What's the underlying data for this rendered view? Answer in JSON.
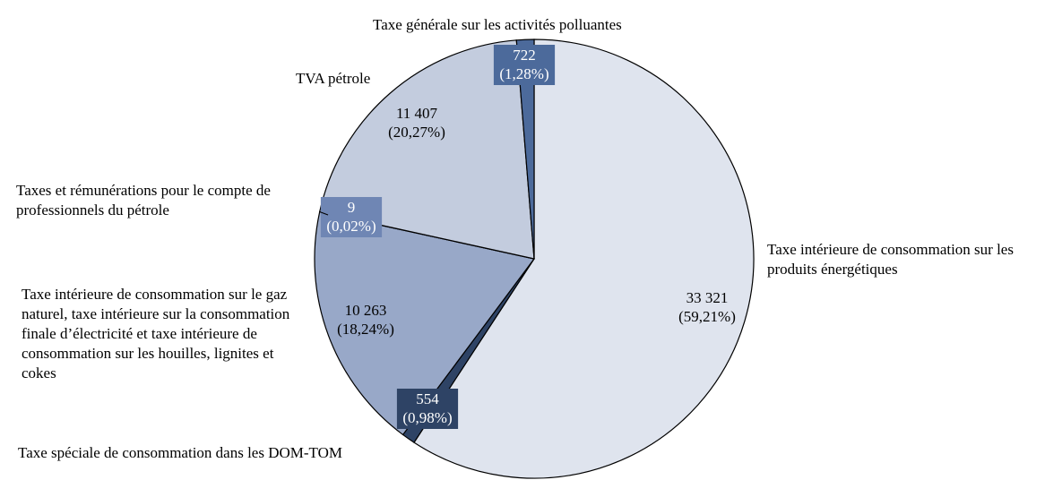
{
  "chart_data": {
    "type": "pie",
    "title": "",
    "slices": [
      {
        "label": "Taxe intérieure de consommation sur les produits énergétiques",
        "value": 33321,
        "value_label": "33 321",
        "pct_label": "(59,21%)",
        "color": "#dfe4ee"
      },
      {
        "label": "Taxe spéciale de consommation dans les DOM-TOM",
        "value": 554,
        "value_label": "554",
        "pct_label": "(0,98%)",
        "color": "#2e4365"
      },
      {
        "label": "Taxe intérieure de consommation sur le gaz naturel, taxe intérieure sur la consommation finale d’électricité et taxe intérieure de consommation sur les houilles, lignites et cokes",
        "value": 10263,
        "value_label": "10 263",
        "pct_label": "(18,24%)",
        "color": "#98a8c8"
      },
      {
        "label": "Taxes et rémunérations pour le compte de professionnels du pétrole",
        "value": 9,
        "value_label": "9",
        "pct_label": "(0,02%)",
        "color": "#6f86b4"
      },
      {
        "label": "TVA pétrole",
        "value": 11407,
        "value_label": "11 407",
        "pct_label": "(20,27%)",
        "color": "#c3ccde"
      },
      {
        "label": "Taxe générale sur les activités polluantes",
        "value": 722,
        "value_label": "722",
        "pct_label": "(1,28%)",
        "color": "#4c6a9b"
      }
    ]
  }
}
